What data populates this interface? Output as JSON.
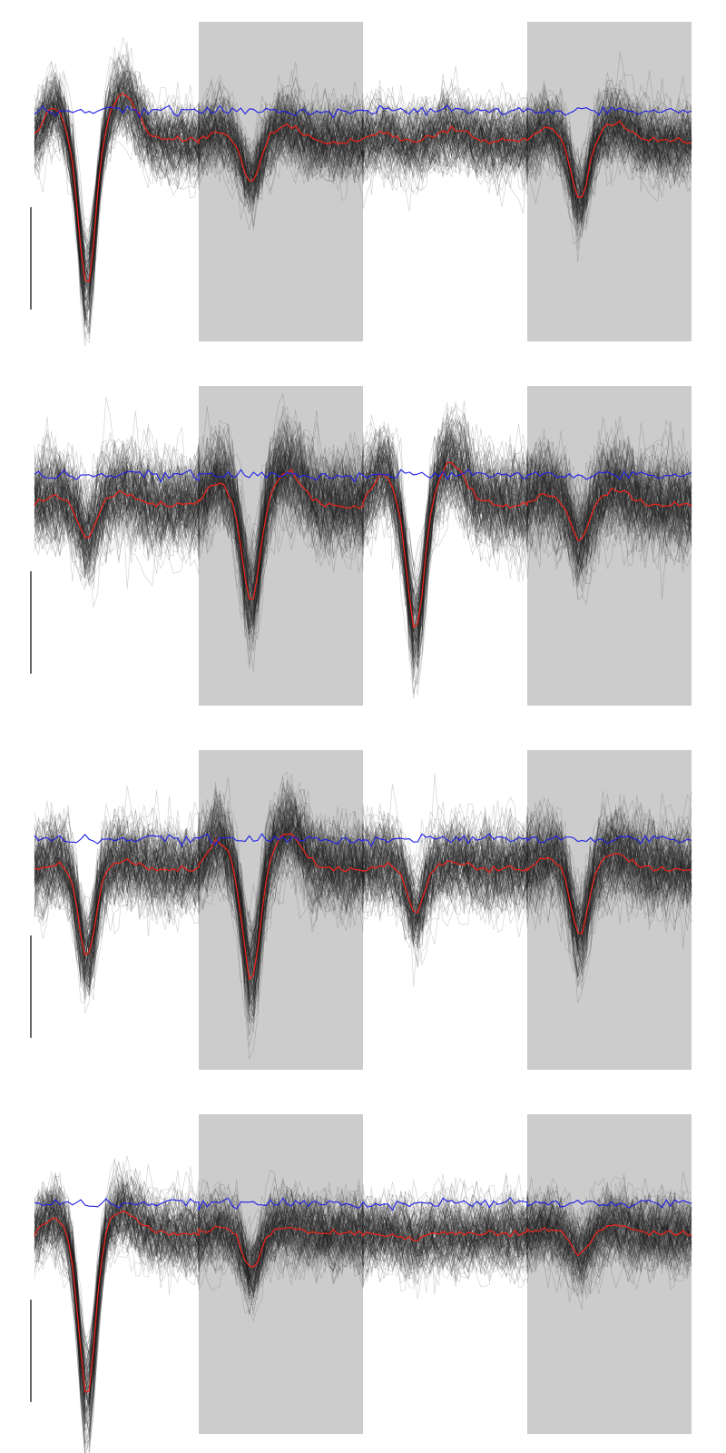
{
  "chart_data": [
    {
      "type": "line",
      "samples_per_channel": 40,
      "channels": 4,
      "channel_amplitude": [
        1.0,
        0.28,
        0.0,
        0.4
      ],
      "channel_positive_lobe": [
        0.32,
        0.1,
        0.08,
        0.12
      ],
      "channel_trough_pos": [
        0.32,
        0.32,
        0.32,
        0.32
      ],
      "noise_sd": 0.09,
      "n_waveforms": 160,
      "ylim": [
        -1.35,
        0.8
      ],
      "grid": false,
      "legend": false,
      "shaded_channels": [
        1,
        3
      ],
      "series_colors": {
        "waveforms": "#1a1a1a",
        "mean": "#e8241c",
        "std": "#1f1fe6",
        "shade": "#cccccc"
      }
    },
    {
      "type": "line",
      "samples_per_channel": 40,
      "channels": 4,
      "channel_amplitude": [
        0.22,
        0.65,
        0.85,
        0.25
      ],
      "channel_positive_lobe": [
        0.08,
        0.22,
        0.28,
        0.1
      ],
      "channel_trough_pos": [
        0.32,
        0.32,
        0.32,
        0.32
      ],
      "noise_sd": 0.12,
      "n_waveforms": 160,
      "ylim": [
        -1.35,
        0.8
      ],
      "grid": false,
      "legend": false,
      "shaded_channels": [
        1,
        3
      ],
      "series_colors": {
        "waveforms": "#1a1a1a",
        "mean": "#e8241c",
        "std": "#1f1fe6",
        "shade": "#cccccc"
      }
    },
    {
      "type": "line",
      "samples_per_channel": 40,
      "channels": 4,
      "channel_amplitude": [
        0.6,
        0.75,
        0.3,
        0.45
      ],
      "channel_positive_lobe": [
        0.05,
        0.25,
        0.05,
        0.1
      ],
      "channel_trough_pos": [
        0.32,
        0.32,
        0.32,
        0.32
      ],
      "noise_sd": 0.11,
      "n_waveforms": 160,
      "ylim": [
        -1.35,
        0.8
      ],
      "grid": false,
      "legend": false,
      "shaded_channels": [
        1,
        3
      ],
      "series_colors": {
        "waveforms": "#1a1a1a",
        "mean": "#e8241c",
        "std": "#1f1fe6",
        "shade": "#cccccc"
      }
    },
    {
      "type": "line",
      "samples_per_channel": 40,
      "channels": 4,
      "channel_amplitude": [
        1.1,
        0.25,
        0.05,
        0.15
      ],
      "channel_positive_lobe": [
        0.15,
        0.05,
        0.0,
        0.05
      ],
      "channel_trough_pos": [
        0.32,
        0.32,
        0.32,
        0.32
      ],
      "noise_sd": 0.09,
      "n_waveforms": 160,
      "ylim": [
        -1.35,
        0.8
      ],
      "grid": false,
      "legend": false,
      "shaded_channels": [
        1,
        3
      ],
      "series_colors": {
        "waveforms": "#1a1a1a",
        "mean": "#e8241c",
        "std": "#1f1fe6",
        "shade": "#cccccc"
      }
    }
  ]
}
